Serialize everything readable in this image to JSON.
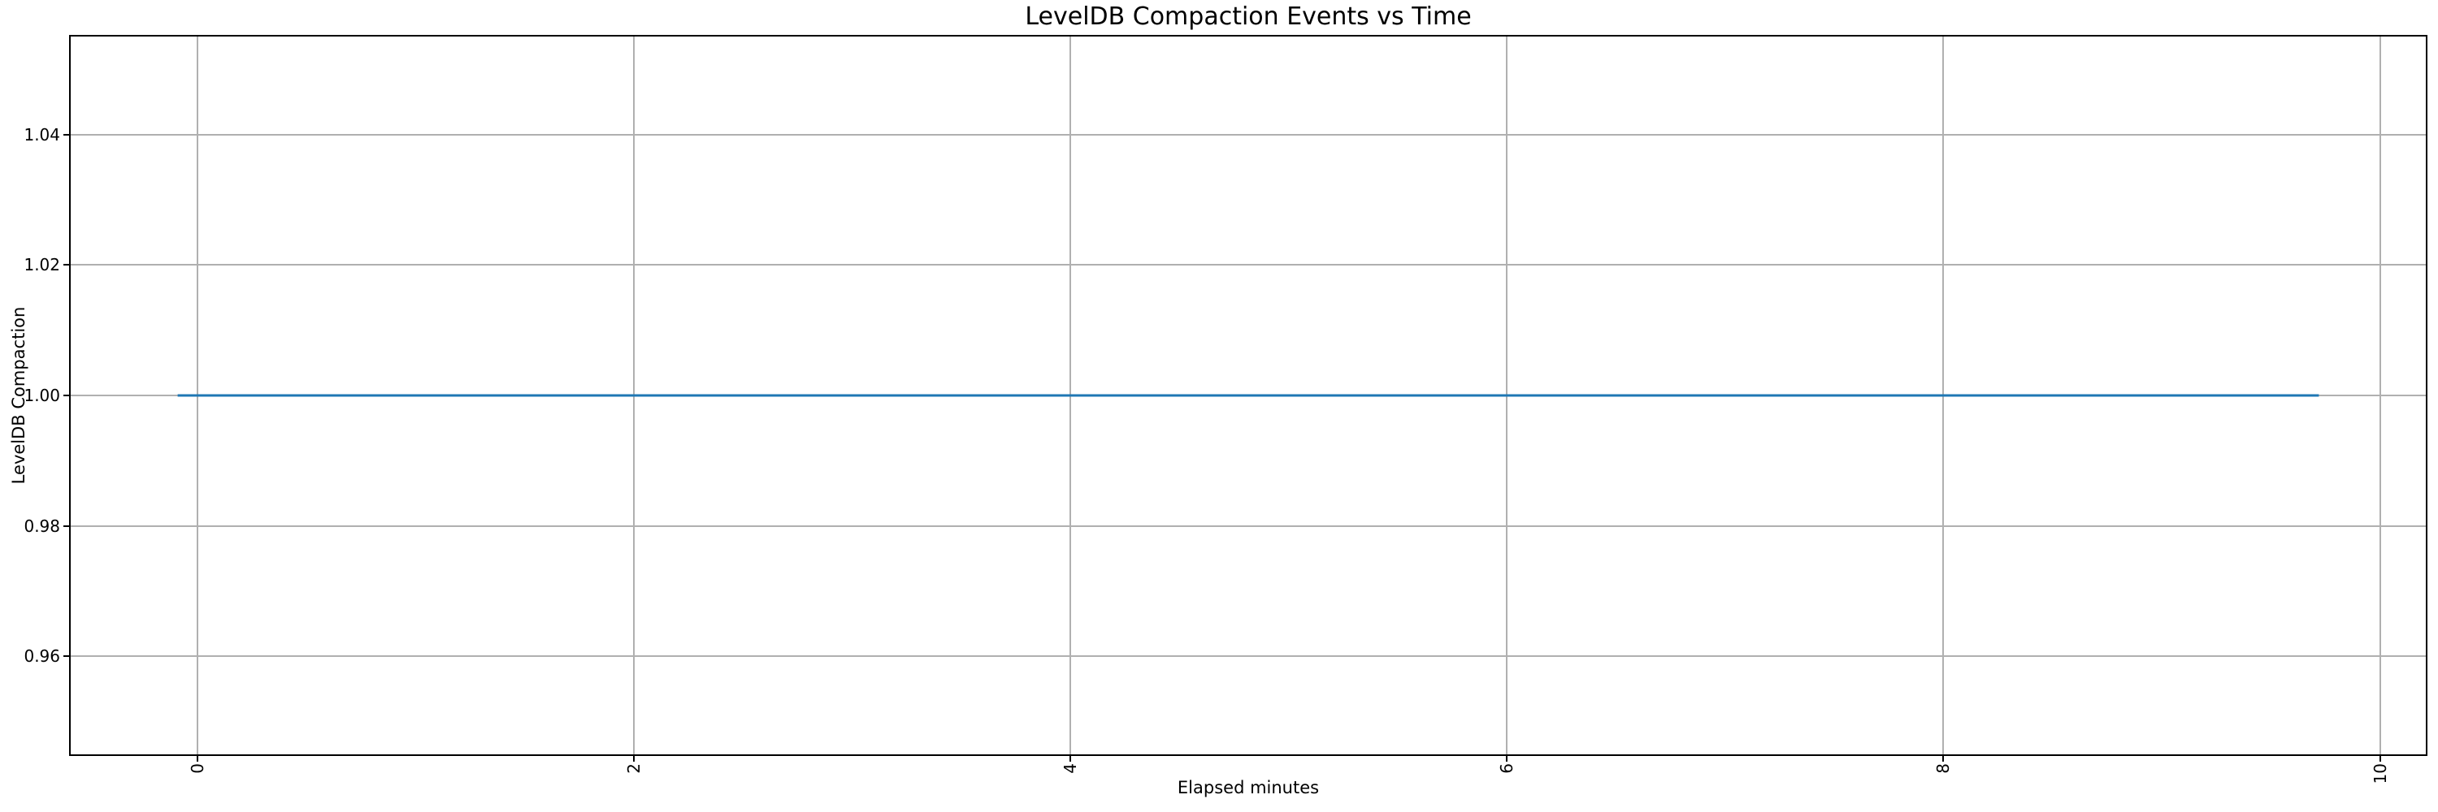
{
  "chart_data": {
    "type": "line",
    "title": "LevelDB Compaction Events vs Time",
    "xlabel": "Elapsed minutes",
    "ylabel": "LevelDB Compaction",
    "xlim": [
      -0.58,
      10.21
    ],
    "ylim": [
      0.945,
      1.055
    ],
    "xticks": [
      0,
      2,
      4,
      6,
      8,
      10
    ],
    "xtick_labels": [
      "0",
      "2",
      "4",
      "6",
      "8",
      "10"
    ],
    "xtick_rotation": 90,
    "yticks": [
      0.96,
      0.98,
      1.0,
      1.02,
      1.04
    ],
    "ytick_labels": [
      "0.96",
      "0.98",
      "1.00",
      "1.02",
      "1.04"
    ],
    "grid": true,
    "legend": "none",
    "series": [
      {
        "name": "LevelDB Compaction",
        "color": "#1f77b4",
        "x": [
          -0.09,
          9.72
        ],
        "y": [
          1.0,
          1.0
        ]
      }
    ],
    "colors": {
      "line": "#1f77b4",
      "grid": "#b0b0b0",
      "spine": "#000000",
      "text": "#000000",
      "background": "#ffffff"
    }
  }
}
